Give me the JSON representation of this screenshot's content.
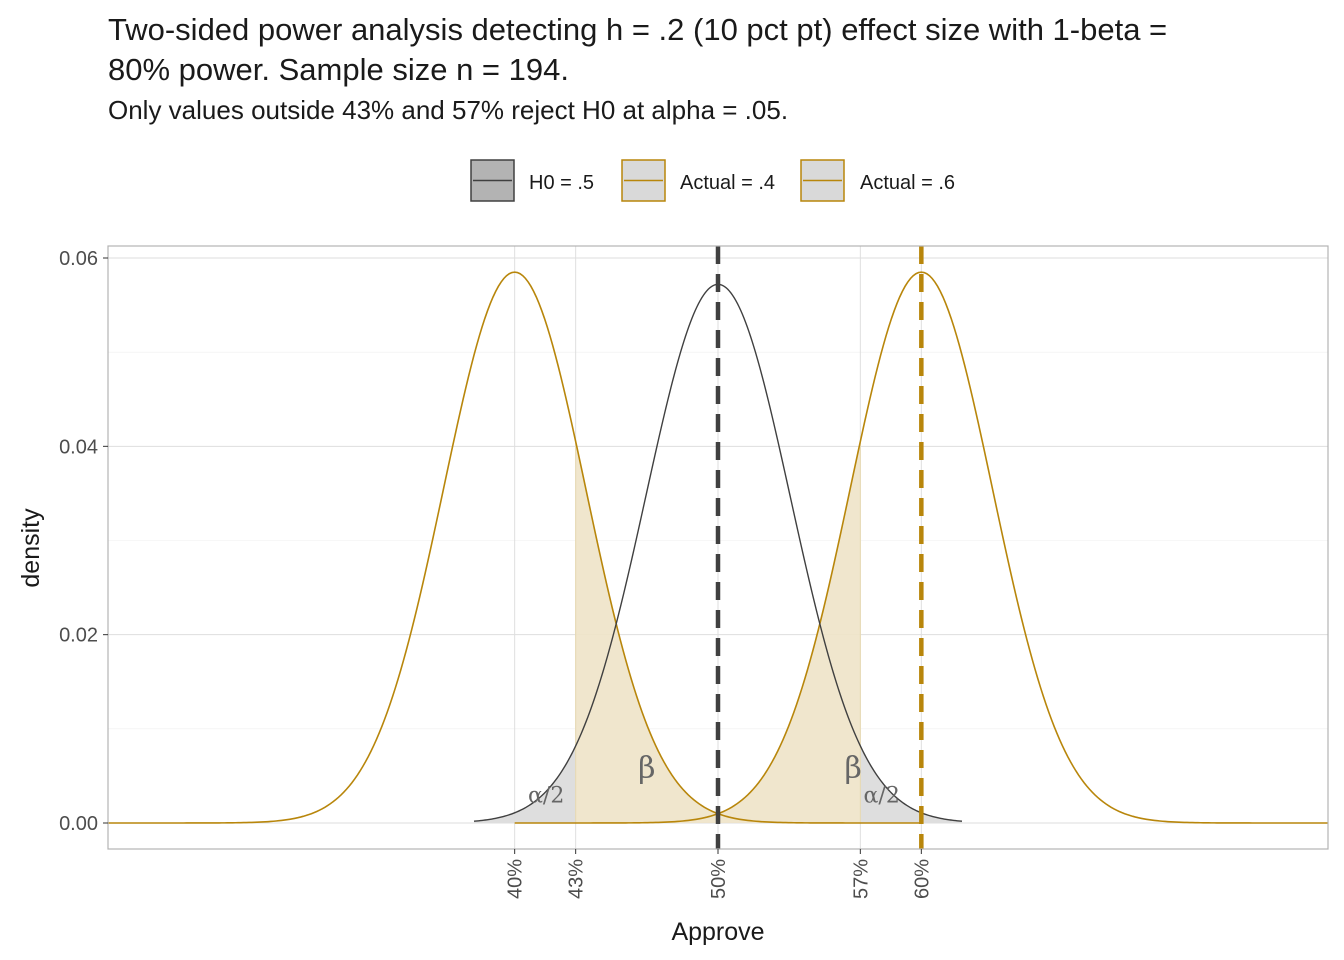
{
  "title": "Two-sided power analysis detecting h = .2 (10 pct pt) effect size with 1-beta =\n80% power. Sample size n = 194.",
  "subtitle": "Only values outside 43% and 57% reject H0 at alpha = .05.",
  "colors": {
    "h0_line": "#404040",
    "h0_fill": "#b3b3b3",
    "actual_line": "#b8860b",
    "actual_fill": "#d9d9d9",
    "beta_fill": "#eee3c8",
    "alpha_fill": "#dcdcdc",
    "grid": "#dedede",
    "panel_border": "#b3b3b3"
  },
  "chart_data": {
    "type": "area",
    "xlabel": "Approve",
    "ylabel": "density",
    "xlim": [
      0.2,
      0.8
    ],
    "ylim": [
      0,
      0.06
    ],
    "y_ticks": [
      0,
      0.02,
      0.04,
      0.06
    ],
    "y_tick_labels": [
      "0.00",
      "0.02",
      "0.04",
      "0.06"
    ],
    "x_ticks": [
      0.4,
      0.43,
      0.5,
      0.57,
      0.6
    ],
    "x_tick_labels": [
      "40%",
      "43%",
      "50%",
      "57%",
      "60%"
    ],
    "legend_position": "top",
    "series": [
      {
        "name": "H0 = .5",
        "mean": 0.5,
        "sd": 0.0355,
        "peak_density": 0.0572,
        "x_range": [
          0.38,
          0.62
        ]
      },
      {
        "name": "Actual = .4",
        "mean": 0.4,
        "sd": 0.035,
        "peak_density": 0.0585,
        "x_range": [
          0.2,
          0.6
        ]
      },
      {
        "name": "Actual = .6",
        "mean": 0.6,
        "sd": 0.035,
        "peak_density": 0.0585,
        "x_range": [
          0.4,
          0.8
        ]
      }
    ],
    "critical_values": [
      0.43,
      0.57
    ],
    "vlines": [
      {
        "x": 0.5,
        "style": "dashed",
        "color": "#404040"
      },
      {
        "x": 0.6,
        "style": "dashed",
        "color": "#b8860b"
      }
    ],
    "annotations": [
      {
        "label": "β",
        "x": 0.465,
        "y": 0.0048
      },
      {
        "label": "β",
        "x": 0.5665,
        "y": 0.0048
      },
      {
        "label": "α/2",
        "x": 0.4155,
        "y": 0.0022
      },
      {
        "label": "α/2",
        "x": 0.5805,
        "y": 0.0022
      }
    ]
  }
}
